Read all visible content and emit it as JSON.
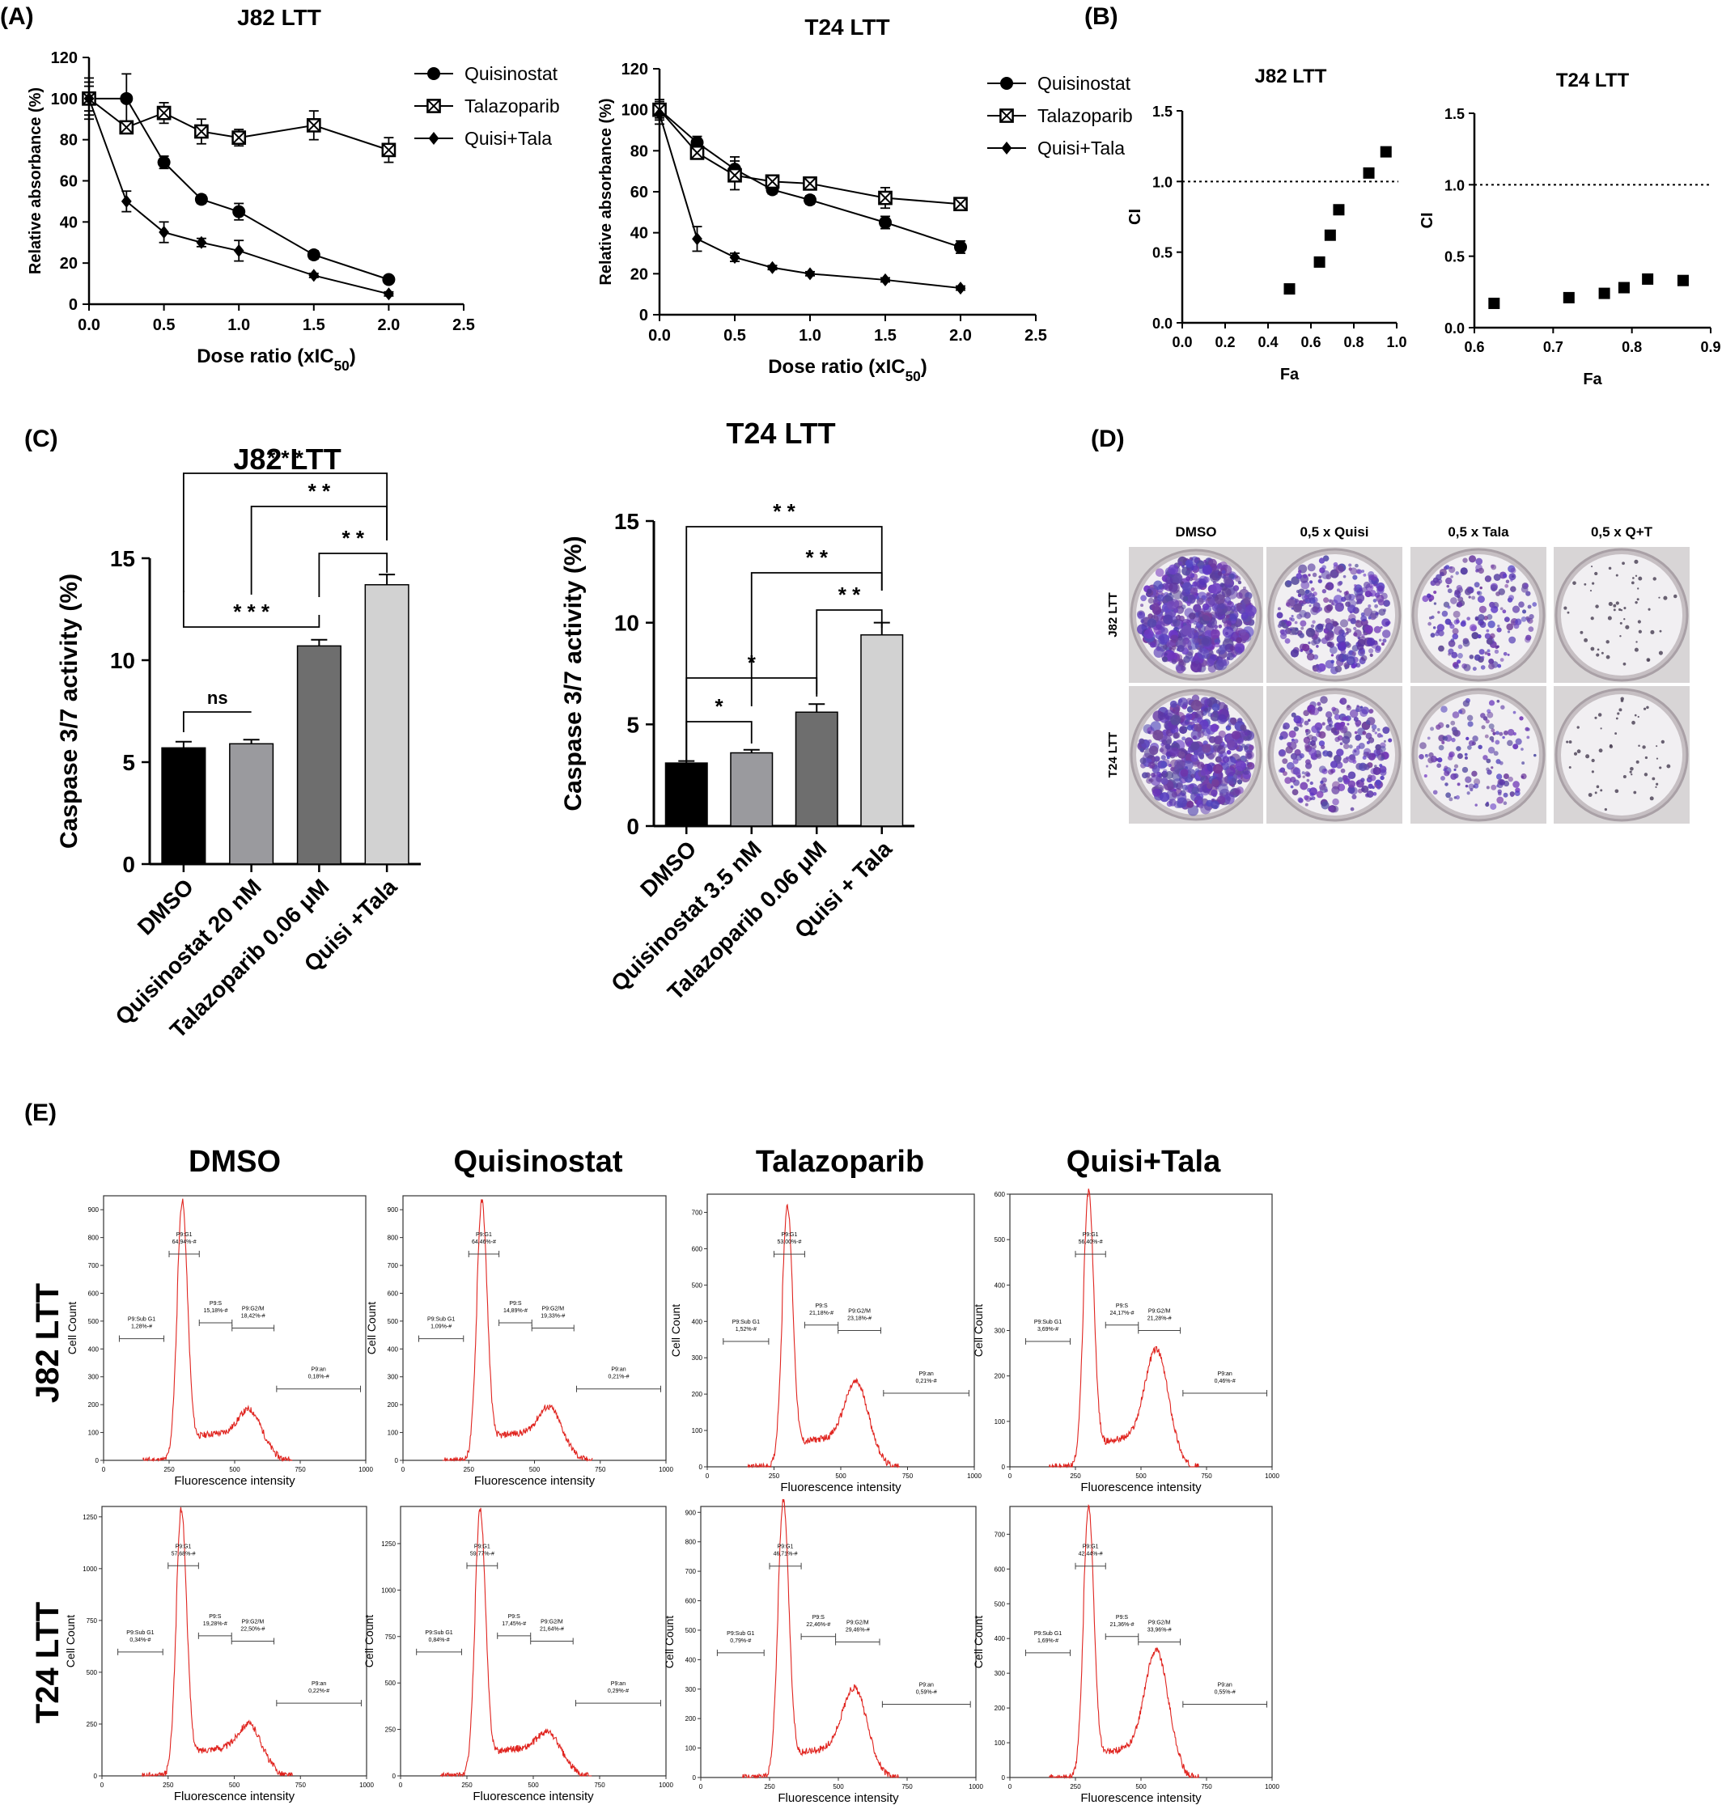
{
  "panel_labels": {
    "A": "(A)",
    "B": "(B)",
    "C": "(C)",
    "D": "(D)",
    "E": "(E)"
  },
  "chart_data": [
    {
      "id": "A1",
      "type": "line",
      "title": "J82 LTT",
      "xlabel": "Dose ratio (xIC50)",
      "ylabel": "Relative absorbance (%)",
      "xlim": [
        0,
        2.5
      ],
      "ylim": [
        0,
        120
      ],
      "xticks": [
        "0.0",
        "0.5",
        "1.0",
        "1.5",
        "2.0",
        "2.5"
      ],
      "yticks": [
        "0",
        "20",
        "40",
        "60",
        "80",
        "100",
        "120"
      ],
      "legend": "top-right",
      "series": [
        {
          "name": "Quisinostat",
          "marker": "circle",
          "x": [
            0,
            0.25,
            0.5,
            0.75,
            1.0,
            1.5,
            2.0
          ],
          "y": [
            100,
            100,
            69,
            51,
            45,
            24,
            12
          ],
          "err": [
            10,
            12,
            3,
            2,
            4,
            2,
            1
          ]
        },
        {
          "name": "Talazoparib",
          "marker": "square-x",
          "x": [
            0,
            0.25,
            0.5,
            0.75,
            1.0,
            1.5,
            2.0
          ],
          "y": [
            100,
            86,
            93,
            84,
            81,
            87,
            75
          ],
          "err": [
            8,
            3,
            5,
            6,
            4,
            7,
            6
          ]
        },
        {
          "name": "Quisi+Tala",
          "marker": "diamond",
          "x": [
            0,
            0.25,
            0.5,
            0.75,
            1.0,
            1.5,
            2.0
          ],
          "y": [
            100,
            50,
            35,
            30,
            26,
            14,
            5
          ],
          "err": [
            6,
            5,
            5,
            2,
            5,
            1,
            1
          ]
        }
      ]
    },
    {
      "id": "A2",
      "type": "line",
      "title": "T24 LTT",
      "xlabel": "Dose ratio (xIC50)",
      "ylabel": "Relative absorbance (%)",
      "xlim": [
        0,
        2.5
      ],
      "ylim": [
        0,
        120
      ],
      "xticks": [
        "0.0",
        "0.5",
        "1.0",
        "1.5",
        "2.0",
        "2.5"
      ],
      "yticks": [
        "0",
        "20",
        "40",
        "60",
        "80",
        "100",
        "120"
      ],
      "legend": "top-right",
      "series": [
        {
          "name": "Quisinostat",
          "marker": "circle",
          "x": [
            0,
            0.25,
            0.5,
            0.75,
            1.0,
            1.5,
            2.0
          ],
          "y": [
            100,
            84,
            71,
            61,
            56,
            45,
            33
          ],
          "err": [
            5,
            3,
            6,
            2,
            2,
            3,
            3
          ]
        },
        {
          "name": "Talazoparib",
          "marker": "square-x",
          "x": [
            0,
            0.25,
            0.5,
            0.75,
            1.0,
            1.5,
            2.0
          ],
          "y": [
            100,
            79,
            68,
            65,
            64,
            57,
            54
          ],
          "err": [
            4,
            2,
            7,
            2,
            2,
            5,
            2
          ]
        },
        {
          "name": "Quisi+Tala",
          "marker": "diamond",
          "x": [
            0,
            0.25,
            0.5,
            0.75,
            1.0,
            1.5,
            2.0
          ],
          "y": [
            98,
            37,
            28,
            23,
            20,
            17,
            13
          ],
          "err": [
            5,
            6,
            2,
            1,
            1,
            1,
            1
          ]
        }
      ]
    },
    {
      "id": "B1",
      "type": "scatter",
      "title": "J82 LTT",
      "xlabel": "Fa",
      "ylabel": "CI",
      "xlim": [
        0,
        1.0
      ],
      "ylim": [
        0,
        1.5
      ],
      "xticks": [
        "0.0",
        "0.2",
        "0.4",
        "0.6",
        "0.8",
        "1.0"
      ],
      "yticks": [
        "0.0",
        "0.5",
        "1.0",
        "1.5"
      ],
      "reference_line": 1.0,
      "x": [
        0.5,
        0.64,
        0.69,
        0.73,
        0.87,
        0.95
      ],
      "y": [
        0.24,
        0.43,
        0.62,
        0.8,
        1.06,
        1.21
      ]
    },
    {
      "id": "B2",
      "type": "scatter",
      "title": "T24 LTT",
      "xlabel": "Fa",
      "ylabel": "CI",
      "xlim": [
        0.6,
        0.9
      ],
      "ylim": [
        0,
        1.5
      ],
      "xticks": [
        "0.6",
        "0.7",
        "0.8",
        "0.9"
      ],
      "yticks": [
        "0.0",
        "0.5",
        "1.0",
        "1.5"
      ],
      "reference_line": 1.0,
      "x": [
        0.625,
        0.72,
        0.765,
        0.79,
        0.82,
        0.865
      ],
      "y": [
        0.17,
        0.21,
        0.24,
        0.28,
        0.34,
        0.33
      ]
    },
    {
      "id": "C1",
      "type": "bar",
      "title": "J82 LTT",
      "ylabel": "Caspase 3/7 activity (%)",
      "ylim": [
        0,
        15
      ],
      "yticks": [
        "0",
        "5",
        "10",
        "15"
      ],
      "categories": [
        "DMSO",
        "Quisinostat 20 nM",
        "Talazoparib 0.06 μM",
        "Quisi +Tala"
      ],
      "values": [
        5.7,
        5.9,
        10.7,
        13.7
      ],
      "err": [
        0.3,
        0.2,
        0.3,
        0.5
      ],
      "colors": [
        "#000000",
        "#9a9a9e",
        "#6e6e6e",
        "#d2d2d2"
      ],
      "significance": [
        {
          "from": 0,
          "to": 1,
          "label": "ns"
        },
        {
          "from": 0,
          "to": 2,
          "label": "* * *"
        },
        {
          "from": 2,
          "to": 3,
          "label": "* *"
        },
        {
          "from": 1,
          "to": 3,
          "label": "* *"
        },
        {
          "from": 0,
          "to": 3,
          "label": "* * *"
        }
      ]
    },
    {
      "id": "C2",
      "type": "bar",
      "title": "T24 LTT",
      "ylabel": "Caspase 3/7 activity (%)",
      "ylim": [
        0,
        15
      ],
      "yticks": [
        "0",
        "5",
        "10",
        "15"
      ],
      "categories": [
        "DMSO",
        "Quisinostat 3.5 nM",
        "Talazoparib 0.06 μM",
        "Quisi + Tala"
      ],
      "values": [
        3.1,
        3.6,
        5.6,
        9.4
      ],
      "err": [
        0.1,
        0.15,
        0.4,
        0.6
      ],
      "colors": [
        "#000000",
        "#9a9a9e",
        "#6e6e6e",
        "#d2d2d2"
      ],
      "significance": [
        {
          "from": 0,
          "to": 1,
          "label": "*"
        },
        {
          "from": 0,
          "to": 2,
          "label": "*"
        },
        {
          "from": 2,
          "to": 3,
          "label": "* *"
        },
        {
          "from": 1,
          "to": 3,
          "label": "* *"
        },
        {
          "from": 0,
          "to": 3,
          "label": "* *"
        }
      ]
    }
  ],
  "panel_d": {
    "columns": [
      "DMSO",
      "0,5 x Quisi",
      "0,5 x Tala",
      "0,5 x Q+T"
    ],
    "rows": [
      "J82 LTT",
      "T24 LTT"
    ],
    "colony_density": [
      [
        0.9,
        0.55,
        0.3,
        0.05
      ],
      [
        0.85,
        0.45,
        0.22,
        0.04
      ]
    ]
  },
  "panel_e": {
    "columns": [
      "DMSO",
      "Quisinostat",
      "Talazoparib",
      "Quisi+Tala"
    ],
    "rows": [
      "J82 LTT",
      "T24 LTT"
    ],
    "xlabel": "Fluorescence intensity",
    "ylabel": "Cell Count",
    "xticks": [
      "0",
      "250",
      "500",
      "750",
      "1000"
    ],
    "plots": [
      {
        "row": 0,
        "col": 0,
        "ymax": 950,
        "yticks": [
          "0",
          "100",
          "200",
          "300",
          "400",
          "500",
          "600",
          "700",
          "800",
          "900"
        ],
        "g1_peak": 0.92,
        "g2_peak": 0.14,
        "gates": {
          "subg1": "P9:Sub G1\n1,28%-#",
          "g1": "P9:G1\n64,94%-#",
          "s": "P9:S\n15,18%-#",
          "g2m": "P9:G2/M\n18,42%-#",
          "an": "P9:an\n0,18%-#"
        }
      },
      {
        "row": 0,
        "col": 1,
        "ymax": 950,
        "yticks": [
          "0",
          "100",
          "200",
          "300",
          "400",
          "500",
          "600",
          "700",
          "800",
          "900"
        ],
        "g1_peak": 0.92,
        "g2_peak": 0.15,
        "gates": {
          "subg1": "P9:Sub G1\n1,09%-#",
          "g1": "P9:G1\n64,46%-#",
          "s": "P9:S\n14,89%-#",
          "g2m": "P9:G2/M\n19,33%-#",
          "an": "P9:an\n0,21%-#"
        }
      },
      {
        "row": 0,
        "col": 2,
        "ymax": 750,
        "yticks": [
          "0",
          "100",
          "200",
          "300",
          "400",
          "500",
          "600",
          "700"
        ],
        "g1_peak": 0.9,
        "g2_peak": 0.26,
        "gates": {
          "subg1": "P9:Sub G1\n1,52%-#",
          "g1": "P9:G1\n53,00%-#",
          "s": "P9:S\n21,18%-#",
          "g2m": "P9:G2/M\n23,18%-#",
          "an": "P9:an\n0,21%-#"
        }
      },
      {
        "row": 0,
        "col": 3,
        "ymax": 600,
        "yticks": [
          "0",
          "100",
          "200",
          "300",
          "400",
          "500",
          "600"
        ],
        "g1_peak": 0.95,
        "g2_peak": 0.38,
        "gates": {
          "subg1": "P9:Sub G1\n3,69%-#",
          "g1": "P9:G1\n56,40%-#",
          "s": "P9:S\n24,17%-#",
          "g2m": "P9:G2/M\n21,28%-#",
          "an": "P9:an\n0,46%-#"
        }
      },
      {
        "row": 1,
        "col": 0,
        "ymax": 1300,
        "yticks": [
          "0",
          "250",
          "500",
          "750",
          "1000",
          "1250"
        ],
        "g1_peak": 0.93,
        "g2_peak": 0.14,
        "gates": {
          "subg1": "P9:Sub G1\n0,34%-#",
          "g1": "P9:G1\n57,68%-#",
          "s": "P9:S\n19,28%-#",
          "g2m": "P9:G2/M\n22,50%-#",
          "an": "P9:an\n0,22%-#"
        }
      },
      {
        "row": 1,
        "col": 1,
        "ymax": 1450,
        "yticks": [
          "0",
          "250",
          "500",
          "750",
          "1000",
          "1250"
        ],
        "g1_peak": 0.93,
        "g2_peak": 0.11,
        "gates": {
          "subg1": "P9:Sub G1\n0,84%-#",
          "g1": "P9:G1\n59,77%-#",
          "s": "P9:S\n17,45%-#",
          "g2m": "P9:G2/M\n21,64%-#",
          "an": "P9:an\n0,29%-#"
        }
      },
      {
        "row": 1,
        "col": 2,
        "ymax": 920,
        "yticks": [
          "0",
          "100",
          "200",
          "300",
          "400",
          "500",
          "600",
          "700",
          "800",
          "900"
        ],
        "g1_peak": 0.96,
        "g2_peak": 0.28,
        "gates": {
          "subg1": "P9:Sub G1\n0,79%-#",
          "g1": "P9:G1\n46,71%-#",
          "s": "P9:S\n22,46%-#",
          "g2m": "P9:G2/M\n29,46%-#",
          "an": "P9:an\n0,59%-#"
        }
      },
      {
        "row": 1,
        "col": 3,
        "ymax": 780,
        "yticks": [
          "0",
          "100",
          "200",
          "300",
          "400",
          "500",
          "600",
          "700"
        ],
        "g1_peak": 0.94,
        "g2_peak": 0.42,
        "gates": {
          "subg1": "P9:Sub G1\n1,69%-#",
          "g1": "P9:G1\n42,44%-#",
          "s": "P9:S\n21,36%-#",
          "g2m": "P9:G2/M\n33,96%-#",
          "an": "P9:an\n0,55%-#"
        }
      }
    ]
  }
}
